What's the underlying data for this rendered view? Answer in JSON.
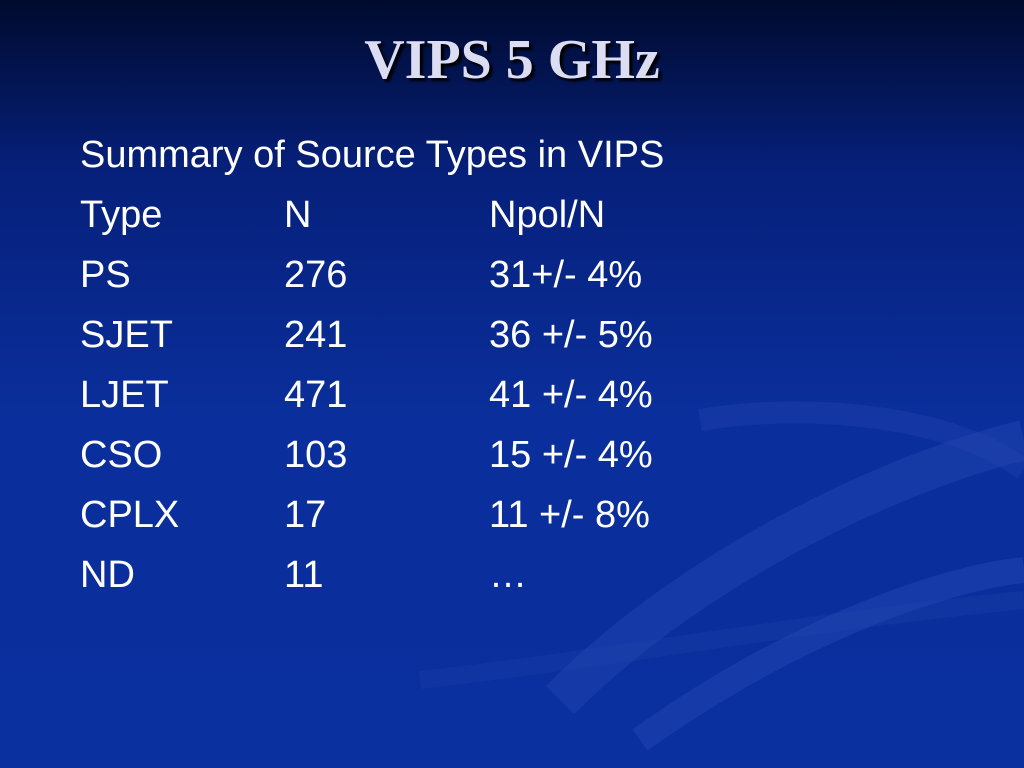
{
  "title": "VIPS 5 GHz",
  "subtitle": "Summary of Source Types in VIPS",
  "table": {
    "header": [
      "Type",
      "N",
      "Npol/N"
    ],
    "rows": [
      [
        "PS",
        "276",
        "31+/- 4%"
      ],
      [
        "SJET",
        "241",
        "36 +/- 5%"
      ],
      [
        "LJET",
        "471",
        "41 +/- 4%"
      ],
      [
        "CSO",
        "103",
        "15 +/- 4%"
      ],
      [
        "CPLX",
        "17",
        "11 +/- 8%"
      ],
      [
        "ND",
        "11",
        "…"
      ]
    ]
  }
}
